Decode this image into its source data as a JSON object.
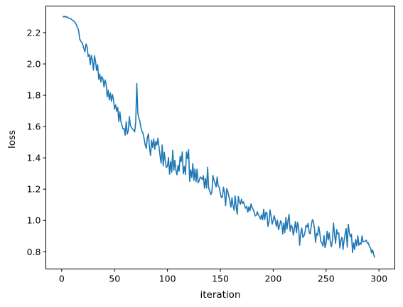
{
  "chart_data": {
    "type": "line",
    "title": "",
    "xlabel": "iteration",
    "ylabel": "loss",
    "xlim": [
      -15,
      315
    ],
    "ylim": [
      0.69,
      2.37
    ],
    "grid": false,
    "xticks": [
      0,
      50,
      100,
      150,
      200,
      250,
      300
    ],
    "xtick_labels": [
      "0",
      "50",
      "100",
      "150",
      "200",
      "250",
      "300"
    ],
    "yticks": [
      0.8,
      1.0,
      1.2,
      1.4,
      1.6,
      1.8,
      2.0,
      2.2
    ],
    "ytick_labels": [
      "0.8",
      "1.0",
      "1.2",
      "1.4",
      "1.6",
      "1.8",
      "2.0",
      "2.2"
    ],
    "series": [
      {
        "color": "#1f77b4",
        "x_start": 1,
        "x_step": 1,
        "values": [
          2.306,
          2.3,
          2.305,
          2.298,
          2.302,
          2.295,
          2.293,
          2.29,
          2.287,
          2.28,
          2.276,
          2.27,
          2.262,
          2.248,
          2.232,
          2.214,
          2.16,
          2.146,
          2.138,
          2.122,
          2.098,
          2.078,
          2.127,
          2.11,
          2.048,
          2.06,
          1.995,
          2.055,
          2.025,
          1.96,
          2.052,
          2.015,
          1.958,
          1.995,
          1.902,
          1.935,
          1.885,
          1.92,
          1.905,
          1.853,
          1.898,
          1.872,
          1.79,
          1.832,
          1.77,
          1.815,
          1.762,
          1.805,
          1.77,
          1.712,
          1.738,
          1.698,
          1.722,
          1.632,
          1.695,
          1.632,
          1.608,
          1.585,
          1.588,
          1.545,
          1.632,
          1.552,
          1.575,
          1.664,
          1.605,
          1.595,
          1.583,
          1.578,
          1.566,
          1.63,
          1.875,
          1.682,
          1.655,
          1.63,
          1.59,
          1.568,
          1.555,
          1.52,
          1.482,
          1.46,
          1.53,
          1.554,
          1.468,
          1.415,
          1.512,
          1.467,
          1.521,
          1.455,
          1.505,
          1.482,
          1.525,
          1.47,
          1.413,
          1.366,
          1.482,
          1.348,
          1.436,
          1.377,
          1.338,
          1.347,
          1.402,
          1.296,
          1.377,
          1.308,
          1.449,
          1.32,
          1.384,
          1.322,
          1.292,
          1.352,
          1.315,
          1.41,
          1.376,
          1.438,
          1.298,
          1.346,
          1.294,
          1.437,
          1.395,
          1.452,
          1.249,
          1.323,
          1.274,
          1.364,
          1.256,
          1.329,
          1.247,
          1.327,
          1.24,
          1.254,
          1.278,
          1.272,
          1.262,
          1.286,
          1.205,
          1.268,
          1.208,
          1.34,
          1.205,
          1.19,
          1.165,
          1.183,
          1.288,
          1.256,
          1.237,
          1.215,
          1.278,
          1.22,
          1.212,
          1.173,
          1.146,
          1.15,
          1.213,
          1.175,
          1.094,
          1.204,
          1.185,
          1.157,
          1.126,
          1.085,
          1.145,
          1.096,
          1.065,
          1.157,
          1.084,
          1.04,
          1.153,
          1.12,
          1.104,
          1.136,
          1.109,
          1.119,
          1.093,
          1.078,
          1.09,
          1.053,
          1.087,
          1.061,
          1.106,
          1.084,
          1.071,
          1.054,
          1.029,
          1.032,
          1.056,
          1.035,
          1.025,
          1.009,
          1.036,
          1.004,
          1.072,
          1.006,
          1.052,
          1.05,
          0.962,
          0.988,
          1.068,
          1.025,
          0.976,
          1.004,
          1.031,
          0.998,
          0.963,
          1.002,
          0.941,
          0.966,
          0.998,
          0.985,
          0.913,
          0.984,
          0.922,
          1.02,
          0.944,
          1.0,
          1.039,
          0.932,
          0.969,
          0.958,
          0.906,
          0.944,
          0.993,
          0.922,
          0.988,
          0.959,
          0.842,
          0.918,
          0.952,
          0.892,
          0.9,
          0.922,
          0.969,
          0.958,
          0.981,
          0.921,
          0.915,
          0.967,
          1.005,
          0.996,
          0.949,
          0.86,
          0.918,
          0.905,
          0.963,
          0.922,
          0.864,
          0.86,
          0.836,
          0.904,
          0.826,
          0.855,
          0.931,
          0.876,
          0.92,
          0.862,
          0.832,
          0.875,
          0.984,
          0.909,
          0.854,
          0.942,
          0.914,
          0.92,
          0.824,
          0.872,
          0.893,
          0.814,
          0.873,
          0.915,
          0.948,
          0.829,
          0.976,
          0.921,
          0.894,
          0.913,
          0.795,
          0.857,
          0.814,
          0.878,
          0.839,
          0.902,
          0.842,
          0.856,
          0.847,
          0.901,
          0.863,
          0.866,
          0.868,
          0.874,
          0.855,
          0.856,
          0.833,
          0.823,
          0.793,
          0.812,
          0.784,
          0.762
        ]
      }
    ]
  }
}
